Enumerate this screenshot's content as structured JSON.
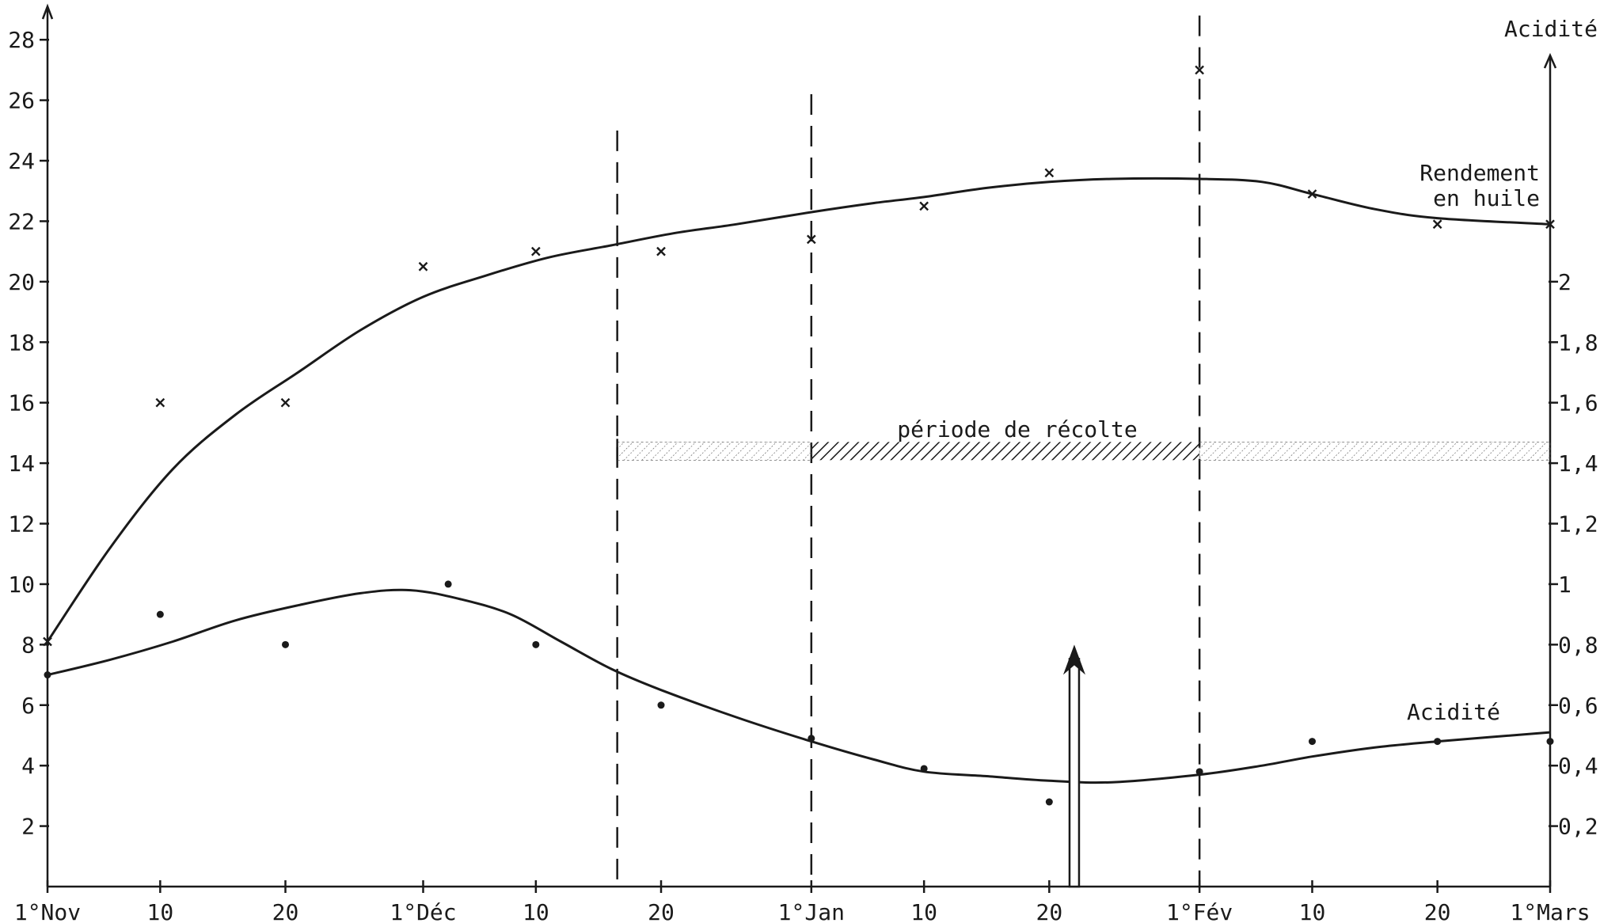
{
  "chart_data": {
    "type": "line",
    "title": "",
    "x_ticks": [
      "1°Nov",
      "10",
      "20",
      "1°Déc",
      "10",
      "20",
      "1°Jan",
      "10",
      "20",
      "1°Fév",
      "10",
      "20",
      "1°Mars"
    ],
    "x_day_index": [
      0,
      9,
      19,
      30,
      39,
      49,
      61,
      70,
      80,
      92,
      101,
      111,
      120
    ],
    "y_left": {
      "ticks": [
        "2",
        "4",
        "6",
        "8",
        "10",
        "12",
        "14",
        "16",
        "18",
        "20",
        "22",
        "24",
        "26",
        "28"
      ],
      "range": [
        0,
        29
      ]
    },
    "y_right": {
      "label": "Acidité",
      "ticks": [
        "0,2",
        "0,4",
        "0,6",
        "0,8",
        "1",
        "1,2",
        "1,4",
        "1,6",
        "1,8",
        "2"
      ],
      "range": [
        0,
        2.9
      ]
    },
    "series": [
      {
        "name": "Rendement en huile",
        "label_lines": [
          "Rendement",
          "en huile"
        ],
        "axis": "left",
        "marker": "x",
        "points": [
          [
            0,
            8.1
          ],
          [
            9,
            16
          ],
          [
            19,
            16
          ],
          [
            30,
            20.5
          ],
          [
            39,
            21
          ],
          [
            49,
            21
          ],
          [
            61,
            21.4
          ],
          [
            70,
            22.5
          ],
          [
            80,
            23.6
          ],
          [
            92,
            27
          ],
          [
            101,
            22.9
          ],
          [
            111,
            21.9
          ],
          [
            120,
            21.9
          ]
        ],
        "trend": [
          [
            0,
            8.1
          ],
          [
            5,
            11.2
          ],
          [
            10,
            13.8
          ],
          [
            15,
            15.6
          ],
          [
            20,
            17
          ],
          [
            25,
            18.4
          ],
          [
            30,
            19.5
          ],
          [
            35,
            20.2
          ],
          [
            40,
            20.8
          ],
          [
            45,
            21.2
          ],
          [
            50,
            21.6
          ],
          [
            55,
            21.9
          ],
          [
            61,
            22.3
          ],
          [
            66,
            22.6
          ],
          [
            70,
            22.8
          ],
          [
            75,
            23.1
          ],
          [
            80,
            23.3
          ],
          [
            85,
            23.4
          ],
          [
            92,
            23.4
          ],
          [
            97,
            23.3
          ],
          [
            101,
            22.9
          ],
          [
            106,
            22.4
          ],
          [
            111,
            22.1
          ],
          [
            120,
            21.9
          ]
        ]
      },
      {
        "name": "Acidité",
        "axis": "right",
        "marker": "o",
        "points": [
          [
            0,
            0.7
          ],
          [
            9,
            0.9
          ],
          [
            19,
            0.8
          ],
          [
            32,
            1.0
          ],
          [
            39,
            0.8
          ],
          [
            49,
            0.6
          ],
          [
            61,
            0.49
          ],
          [
            70,
            0.39
          ],
          [
            80,
            0.28
          ],
          [
            92,
            0.38
          ],
          [
            101,
            0.48
          ],
          [
            111,
            0.48
          ],
          [
            120,
            0.48
          ]
        ],
        "trend": [
          [
            0,
            0.7
          ],
          [
            5,
            0.75
          ],
          [
            10,
            0.81
          ],
          [
            15,
            0.88
          ],
          [
            20,
            0.93
          ],
          [
            25,
            0.97
          ],
          [
            29,
            0.98
          ],
          [
            33,
            0.95
          ],
          [
            37,
            0.9
          ],
          [
            41,
            0.81
          ],
          [
            45,
            0.72
          ],
          [
            49,
            0.65
          ],
          [
            55,
            0.56
          ],
          [
            61,
            0.48
          ],
          [
            66,
            0.42
          ],
          [
            70,
            0.38
          ],
          [
            75,
            0.365
          ],
          [
            80,
            0.35
          ],
          [
            85,
            0.345
          ],
          [
            92,
            0.37
          ],
          [
            97,
            0.4
          ],
          [
            101,
            0.43
          ],
          [
            106,
            0.46
          ],
          [
            111,
            0.48
          ],
          [
            120,
            0.51
          ]
        ]
      }
    ],
    "harvest_period": {
      "label": "période de récolte",
      "start_day": 45.5,
      "solid_start_day": 61,
      "solid_end_day": 92,
      "end_day": 120,
      "level": 14.2
    },
    "vertical_lines_day": [
      45.5,
      61,
      92
    ],
    "arrow": {
      "day": 82,
      "from": 0,
      "to": 8
    },
    "legend": "none",
    "grid": false
  }
}
